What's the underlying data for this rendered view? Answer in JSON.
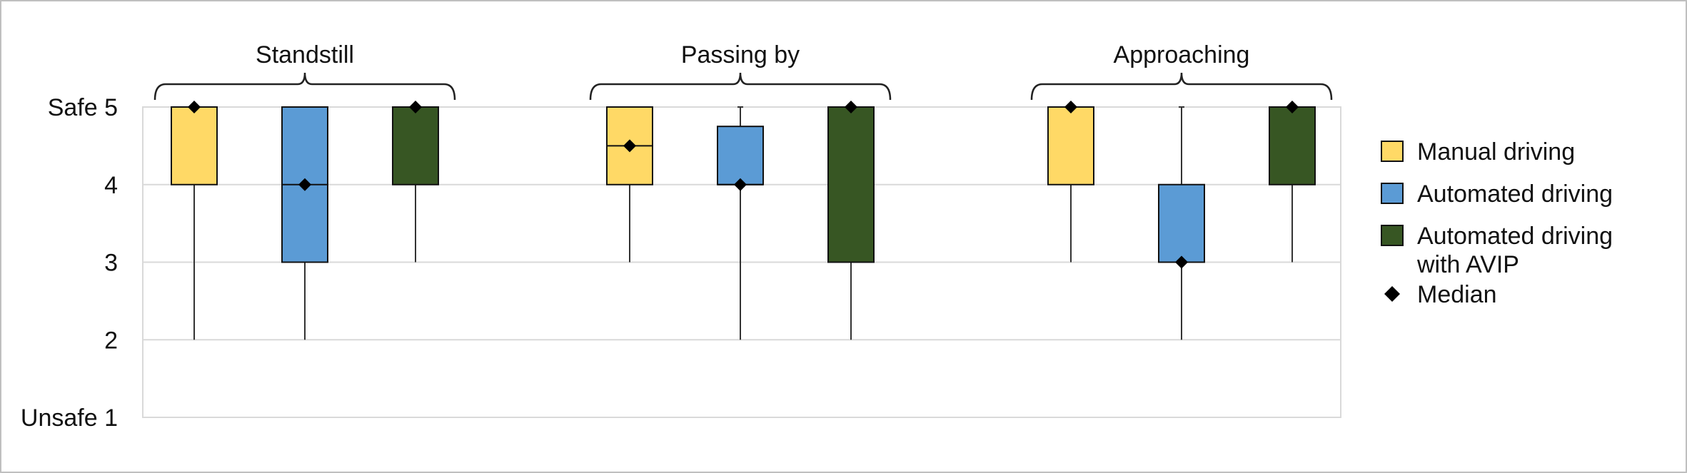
{
  "chart_data": {
    "type": "boxplot",
    "title": "",
    "xlabel": "",
    "ylabel": "",
    "ylim": [
      1,
      5
    ],
    "yticks": [
      {
        "value": 5,
        "label": "Safe 5"
      },
      {
        "value": 4,
        "label": "4"
      },
      {
        "value": 3,
        "label": "3"
      },
      {
        "value": 2,
        "label": "2"
      },
      {
        "value": 1,
        "label": "Unsafe 1"
      }
    ],
    "grid": true,
    "legend_position": "right",
    "series": [
      {
        "name": "Manual driving",
        "color": "#ffd966"
      },
      {
        "name": "Automated driving",
        "color": "#5b9bd5"
      },
      {
        "name": "Automated driving with AVIP",
        "color": "#375623"
      }
    ],
    "median_legend": "Median",
    "groups": [
      {
        "label": "Standstill",
        "boxes": [
          {
            "series": "Manual driving",
            "min": 2,
            "q1": 4,
            "median": 5,
            "q3": 5,
            "max": 5
          },
          {
            "series": "Automated driving",
            "min": 2,
            "q1": 3,
            "median": 4,
            "q3": 5,
            "max": 5
          },
          {
            "series": "Automated driving with AVIP",
            "min": 3,
            "q1": 4,
            "median": 5,
            "q3": 5,
            "max": 5
          }
        ]
      },
      {
        "label": "Passing by",
        "boxes": [
          {
            "series": "Manual driving",
            "min": 3,
            "q1": 4,
            "median": 4.5,
            "q3": 5,
            "max": 5
          },
          {
            "series": "Automated driving",
            "min": 2,
            "q1": 4,
            "median": 4,
            "q3": 4.75,
            "max": 5
          },
          {
            "series": "Automated driving with AVIP",
            "min": 2,
            "q1": 3,
            "median": 5,
            "q3": 5,
            "max": 5
          }
        ]
      },
      {
        "label": "Approaching",
        "boxes": [
          {
            "series": "Manual driving",
            "min": 3,
            "q1": 4,
            "median": 5,
            "q3": 5,
            "max": 5
          },
          {
            "series": "Automated driving",
            "min": 2,
            "q1": 3,
            "median": 3,
            "q3": 4,
            "max": 5
          },
          {
            "series": "Automated driving with AVIP",
            "min": 3,
            "q1": 4,
            "median": 5,
            "q3": 5,
            "max": 5
          }
        ]
      }
    ]
  }
}
